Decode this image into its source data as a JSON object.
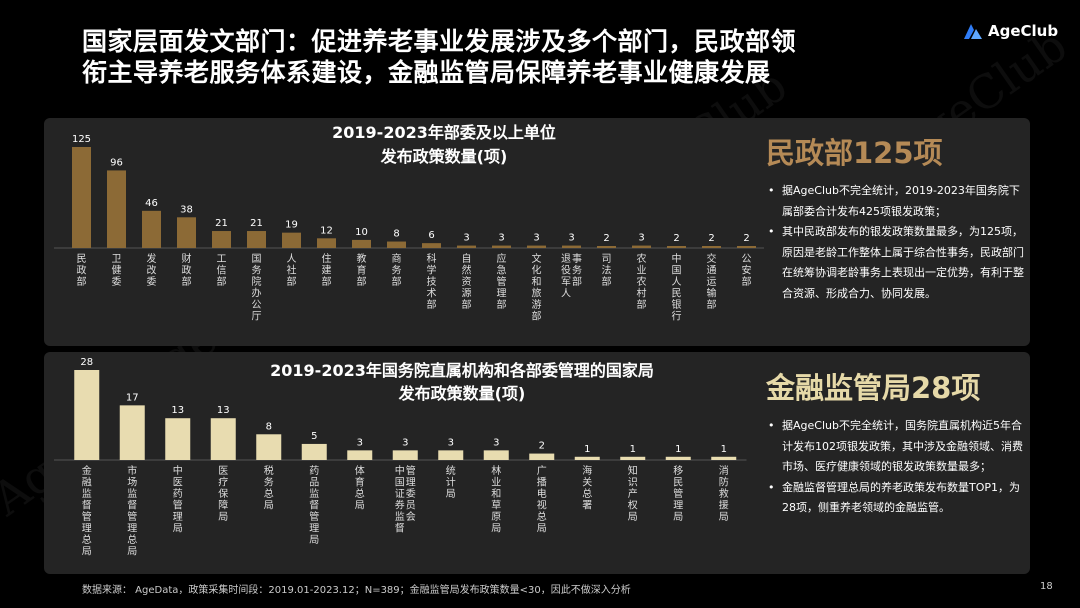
{
  "header": {
    "title_line1": "国家层面发文部门：促进养老事业发展涉及多个部门，民政部领",
    "title_line2": "衔主导养老服务体系建设，金融监管局保障养老事业健康发展",
    "logo_text": "AgeClub",
    "watermark": "AgeClub"
  },
  "colors": {
    "chart1_bar": "#8c6a36",
    "chart2_bar": "#e8dcb0",
    "highlight1": "#b58a56",
    "highlight2": "#e6d9a8",
    "panel_bg": "#242424"
  },
  "chart_data": [
    {
      "type": "bar",
      "title": "2019-2023年部委及以上单位",
      "subtitle": "发布政策数量(项)",
      "categories": [
        "民政部",
        "卫健委",
        "发改委",
        "财政部",
        "工信部",
        "国务院办公厅",
        "人社部",
        "住建部",
        "教育部",
        "商务部",
        "科学技术部",
        "自然资源部",
        "应急管理部",
        "文化和旅游部",
        "退役军人事务部",
        "司法部",
        "农业农村部",
        "中国人民银行",
        "交通运输部",
        "公安部"
      ],
      "values": [
        125,
        96,
        46,
        38,
        21,
        21,
        19,
        12,
        10,
        8,
        6,
        3,
        3,
        3,
        3,
        2,
        3,
        2,
        2,
        2
      ],
      "xlabel": "",
      "ylabel": "",
      "ylim": [
        0,
        125
      ]
    },
    {
      "type": "bar",
      "title": "2019-2023年国务院直属机构和各部委管理的国家局",
      "subtitle": "发布政策数量(项)",
      "categories": [
        "金融监督管理总局",
        "市场监督管理总局",
        "中医药管理局",
        "医疗保障局",
        "税务总局",
        "药品监督管理局",
        "体育总局",
        "中国证券监督管理委员会",
        "统计局",
        "林业和草原局",
        "广播电视总局",
        "海关总署",
        "知识产权局",
        "移民管理局",
        "消防救援局"
      ],
      "values": [
        28,
        17,
        13,
        13,
        8,
        5,
        3,
        3,
        3,
        3,
        2,
        1,
        1,
        1,
        1
      ],
      "xlabel": "",
      "ylabel": "",
      "ylim": [
        0,
        28
      ]
    }
  ],
  "side1": {
    "headline": "民政部125项",
    "bullets": [
      "据AgeClub不完全统计，2019-2023年国务院下属部委合计发布425项银发政策；",
      "其中民政部发布的银发政策数量最多，为125项，原因是老龄工作整体上属于综合性事务，民政部门在统筹协调老龄事务上表现出一定优势，有利于整合资源、形成合力、协同发展。"
    ]
  },
  "side2": {
    "headline": "金融监管局28项",
    "bullets": [
      "据AgeClub不完全统计，国务院直属机构近5年合计发布102项银发政策，其中涉及金融领域、消费市场、医疗健康领域的银发政策数量最多；",
      "金融监督管理总局的养老政策发布数量TOP1，为28项，侧重养老领域的金融监管。"
    ]
  },
  "footer": {
    "source": "数据来源： AgeData，政策采集时间段：2019.01-2023.12；N=389；金融监管局发布政策数量<30，因此不做深入分析",
    "page": "18"
  }
}
